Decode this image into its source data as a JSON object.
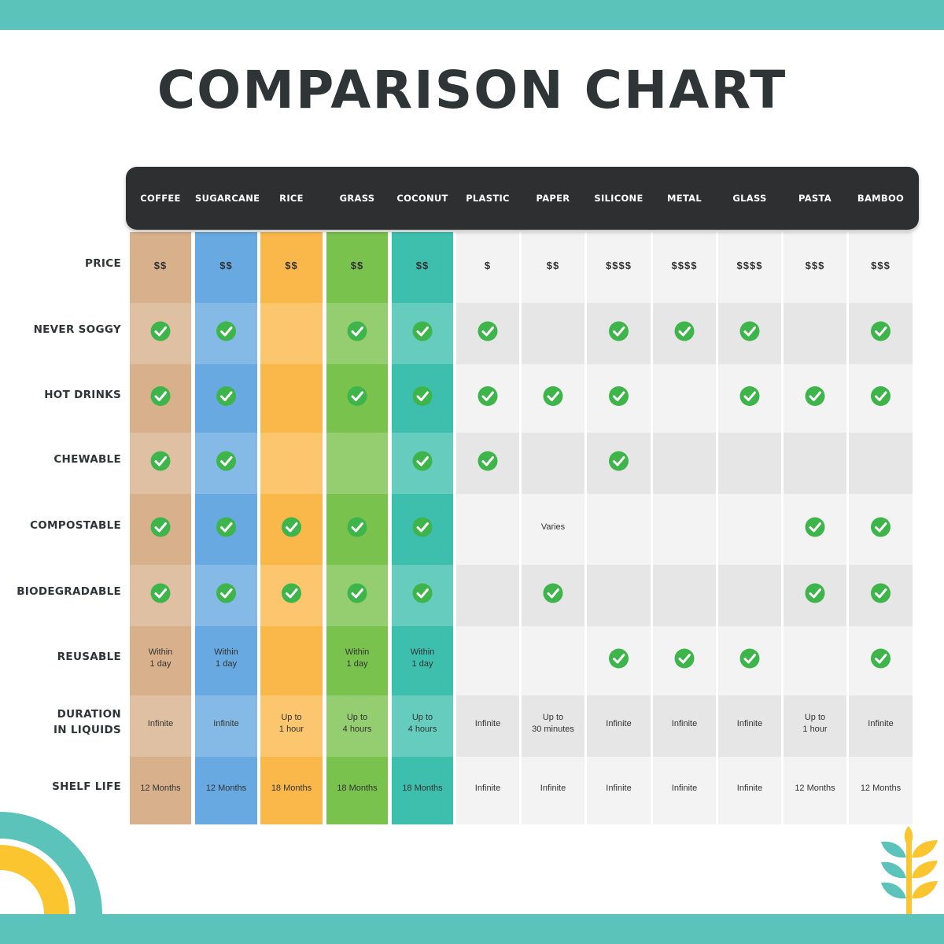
{
  "chart_data": {
    "type": "table",
    "title": "COMPARISON CHART",
    "columns": [
      "COFFEE",
      "SUGARCANE",
      "RICE",
      "GRASS",
      "COCONUT",
      "PLASTIC",
      "PAPER",
      "SILICONE",
      "METAL",
      "GLASS",
      "PASTA",
      "BAMBOO"
    ],
    "column_colors": [
      "#d8b08c",
      "#67a9e0",
      "#fbb84a",
      "#79c24e",
      "#3ebfae",
      "",
      "",
      "",
      "",
      "",
      "",
      ""
    ],
    "rows": [
      {
        "label": [
          "PRICE"
        ],
        "cells": [
          "$$",
          "$$",
          "$$",
          "$$",
          "$$",
          "$",
          "$$",
          "$$$$",
          "$$$$",
          "$$$$",
          "$$$",
          "$$$"
        ]
      },
      {
        "label": [
          "NEVER SOGGY"
        ],
        "cells": [
          "check",
          "check",
          "",
          "check",
          "check",
          "check",
          "",
          "check",
          "check",
          "check",
          "",
          "check"
        ]
      },
      {
        "label": [
          "HOT DRINKS"
        ],
        "cells": [
          "check",
          "check",
          "",
          "check",
          "check",
          "check",
          "check",
          "check",
          "",
          "check",
          "check",
          "check"
        ]
      },
      {
        "label": [
          "CHEWABLE"
        ],
        "cells": [
          "check",
          "check",
          "",
          "",
          "check",
          "check",
          "",
          "check",
          "",
          "",
          "",
          ""
        ]
      },
      {
        "label": [
          "COMPOSTABLE"
        ],
        "cells": [
          "check",
          "check",
          "check",
          "check",
          "check",
          "",
          "Varies",
          "",
          "",
          "",
          "check",
          "check"
        ]
      },
      {
        "label": [
          "BIODEGRADABLE"
        ],
        "cells": [
          "check",
          "check",
          "check",
          "check",
          "check",
          "",
          "check",
          "",
          "",
          "",
          "check",
          "check"
        ]
      },
      {
        "label": [
          "REUSABLE"
        ],
        "cells": [
          [
            "Within",
            "1 day"
          ],
          [
            "Within",
            "1 day"
          ],
          "",
          [
            "Within",
            "1 day"
          ],
          [
            "Within",
            "1 day"
          ],
          "",
          "",
          "check",
          "check",
          "check",
          "",
          "check"
        ]
      },
      {
        "label": [
          "DURATION",
          "IN LIQUIDS"
        ],
        "cells": [
          "Infinite",
          "Infinite",
          [
            "Up to",
            "1 hour"
          ],
          [
            "Up to",
            "4 hours"
          ],
          [
            "Up to",
            "4 hours"
          ],
          "Infinite",
          [
            "Up to",
            "30 minutes"
          ],
          "Infinite",
          "Infinite",
          "Infinite",
          [
            "Up to",
            "1 hour"
          ],
          "Infinite"
        ]
      },
      {
        "label": [
          "SHELF LIFE"
        ],
        "cells": [
          "12 Months",
          "12 Months",
          "18 Months",
          "18 Months",
          "18 Months",
          "Infinite",
          "Infinite",
          "Infinite",
          "Infinite",
          "Infinite",
          "12 Months",
          "12 Months"
        ]
      }
    ]
  },
  "colors": {
    "band": "#5cc3bb",
    "header_bg": "#2e2f31",
    "check": "#3db54a",
    "neutral_light": "#f3f3f3",
    "neutral_dark": "#e6e6e6",
    "rainbow_outer": "#5cc3bb",
    "rainbow_inner": "#fbc530",
    "wheat_teal": "#5cc3bb",
    "wheat_yellow": "#fbc530"
  },
  "decor": {
    "rainbow": "rainbow-icon",
    "wheat": "wheat-icon",
    "check": "check-circle-icon"
  }
}
